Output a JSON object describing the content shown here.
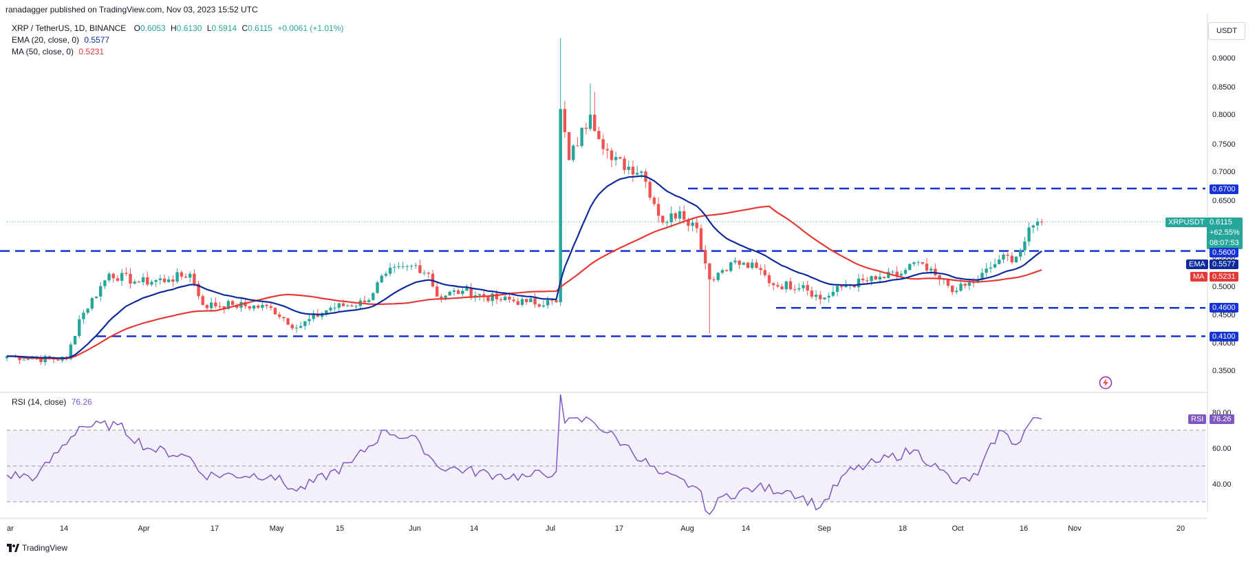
{
  "header": {
    "publisher": "ranadagger published on TradingView.com, Nov 03, 2023 15:52 UTC"
  },
  "legend": {
    "symbol": "XRP / TetherUS, 1D, BINANCE",
    "o_label": "O",
    "o": "0.6053",
    "h_label": "H",
    "h": "0.6130",
    "l_label": "L",
    "l": "0.5914",
    "c_label": "C",
    "c": "0.6115",
    "change": "+0.0061 (+1.01%)",
    "ema_label": "EMA (20, close, 0)",
    "ema_value": "0.5577",
    "ma_label": "MA (50, close, 0)",
    "ma_value": "0.5231",
    "rsi_label": "RSI (14, close)",
    "rsi_value": "76.26"
  },
  "currency_box": "USDT",
  "price_tag": {
    "symbol": "XRPUSDT",
    "price": "0.6115",
    "change_pct": "+62.55%",
    "countdown": "08:07:53"
  },
  "level_labels": {
    "l0670": "0.6700",
    "l0560": "0.5600",
    "l0460": "0.4600",
    "l0410": "0.4100"
  },
  "indicator_tags": {
    "ema_tag": "EMA",
    "ema_val": "0.5577",
    "ma_tag": "MA",
    "ma_val": "0.5231",
    "rsi_tag": "RSI",
    "rsi_val": "76.26"
  },
  "brand": "TradingView",
  "colors": {
    "up": "#26a69a",
    "down": "#ef5350",
    "ema": "#0d2a9c",
    "ma": "#e53935",
    "level": "#1633d6",
    "rsi": "#7e57c2"
  },
  "chart_data": [
    {
      "type": "candlestick",
      "title": "XRP / TetherUS, 1D, BINANCE",
      "x_ticks": [
        "ar",
        "14",
        "Apr",
        "17",
        "May",
        "15",
        "Jun",
        "14",
        "Jul",
        "17",
        "Aug",
        "14",
        "Sep",
        "18",
        "Oct",
        "16",
        "Nov",
        "20"
      ],
      "y_ticks": [
        "0.9000",
        "0.8500",
        "0.8000",
        "0.7500",
        "0.7000",
        "0.6500",
        "0.5500",
        "0.5000",
        "0.4500",
        "0.4000",
        "0.3500"
      ],
      "ylim": [
        0.32,
        0.95
      ],
      "series": [
        {
          "name": "XRPUSDT",
          "anchors": [
            [
              "Mar 05",
              0.375
            ],
            [
              "Mar 12",
              0.37
            ],
            [
              "Mar 19",
              0.37
            ],
            [
              "Mar 22",
              0.44
            ],
            [
              "Mar 29",
              0.52
            ],
            [
              "Apr 05",
              0.505
            ],
            [
              "Apr 12",
              0.51
            ],
            [
              "Apr 17",
              0.52
            ],
            [
              "Apr 20",
              0.465
            ],
            [
              "Apr 27",
              0.465
            ],
            [
              "May 06",
              0.46
            ],
            [
              "May 12",
              0.425
            ],
            [
              "May 20",
              0.46
            ],
            [
              "May 28",
              0.47
            ],
            [
              "Jun 02",
              0.52
            ],
            [
              "Jun 09",
              0.535
            ],
            [
              "Jun 12",
              0.52
            ],
            [
              "Jun 14",
              0.48
            ],
            [
              "Jun 20",
              0.49
            ],
            [
              "Jun 28",
              0.475
            ],
            [
              "Jul 05",
              0.47
            ],
            [
              "Jul 12",
              0.47
            ],
            [
              "Jul 13",
              0.81
            ],
            [
              "Jul 15",
              0.72
            ],
            [
              "Jul 20",
              0.8
            ],
            [
              "Jul 25",
              0.72
            ],
            [
              "Aug 01",
              0.7
            ],
            [
              "Aug 06",
              0.61
            ],
            [
              "Aug 10",
              0.63
            ],
            [
              "Aug 14",
              0.6
            ],
            [
              "Aug 17",
              0.51
            ],
            [
              "Aug 22",
              0.54
            ],
            [
              "Aug 28",
              0.53
            ],
            [
              "Sep 01",
              0.5
            ],
            [
              "Sep 08",
              0.5
            ],
            [
              "Sep 12",
              0.475
            ],
            [
              "Sep 18",
              0.5
            ],
            [
              "Sep 25",
              0.51
            ],
            [
              "Oct 01",
              0.52
            ],
            [
              "Oct 04",
              0.54
            ],
            [
              "Oct 10",
              0.51
            ],
            [
              "Oct 14",
              0.49
            ],
            [
              "Oct 19",
              0.51
            ],
            [
              "Oct 24",
              0.545
            ],
            [
              "Oct 28",
              0.55
            ],
            [
              "Nov 01",
              0.605
            ],
            [
              "Nov 03",
              0.6115
            ]
          ]
        },
        {
          "name": "EMA (20, close, 0)",
          "value": 0.5577
        },
        {
          "name": "MA (50, close, 0)",
          "value": 0.5231
        }
      ],
      "horizontal_levels": [
        0.67,
        0.56,
        0.46,
        0.41
      ]
    },
    {
      "type": "line",
      "title": "RSI (14, close)",
      "y_ticks": [
        "80.00",
        "60.00",
        "40.00"
      ],
      "ylim": [
        20,
        90
      ],
      "bands": [
        70,
        50,
        30
      ],
      "series": [
        {
          "name": "RSI (14, close)",
          "anchors": [
            [
              "Mar 05",
              45
            ],
            [
              "Mar 12",
              44
            ],
            [
              "Mar 22",
              72
            ],
            [
              "Mar 31",
              73
            ],
            [
              "Apr 07",
              60
            ],
            [
              "Apr 17",
              55
            ],
            [
              "Apr 20",
              45
            ],
            [
              "May 06",
              45
            ],
            [
              "May 12",
              36
            ],
            [
              "May 25",
              52
            ],
            [
              "Jun 02",
              70
            ],
            [
              "Jun 10",
              63
            ],
            [
              "Jun 14",
              50
            ],
            [
              "Jun 28",
              45
            ],
            [
              "Jul 05",
              44
            ],
            [
              "Jul 12",
              47
            ],
            [
              "Jul 13",
              90
            ],
            [
              "Jul 14",
              74
            ],
            [
              "Jul 20",
              76
            ],
            [
              "Jul 28",
              62
            ],
            [
              "Aug 05",
              46
            ],
            [
              "Aug 14",
              38
            ],
            [
              "Aug 17",
              23
            ],
            [
              "Aug 20",
              33
            ],
            [
              "Aug 28",
              38
            ],
            [
              "Sep 05",
              36
            ],
            [
              "Sep 12",
              27
            ],
            [
              "Sep 18",
              46
            ],
            [
              "Sep 25",
              52
            ],
            [
              "Oct 04",
              59
            ],
            [
              "Oct 10",
              48
            ],
            [
              "Oct 14",
              40
            ],
            [
              "Oct 19",
              45
            ],
            [
              "Oct 24",
              70
            ],
            [
              "Oct 28",
              62
            ],
            [
              "Nov 01",
              77
            ],
            [
              "Nov 03",
              76.26
            ]
          ]
        }
      ]
    }
  ]
}
